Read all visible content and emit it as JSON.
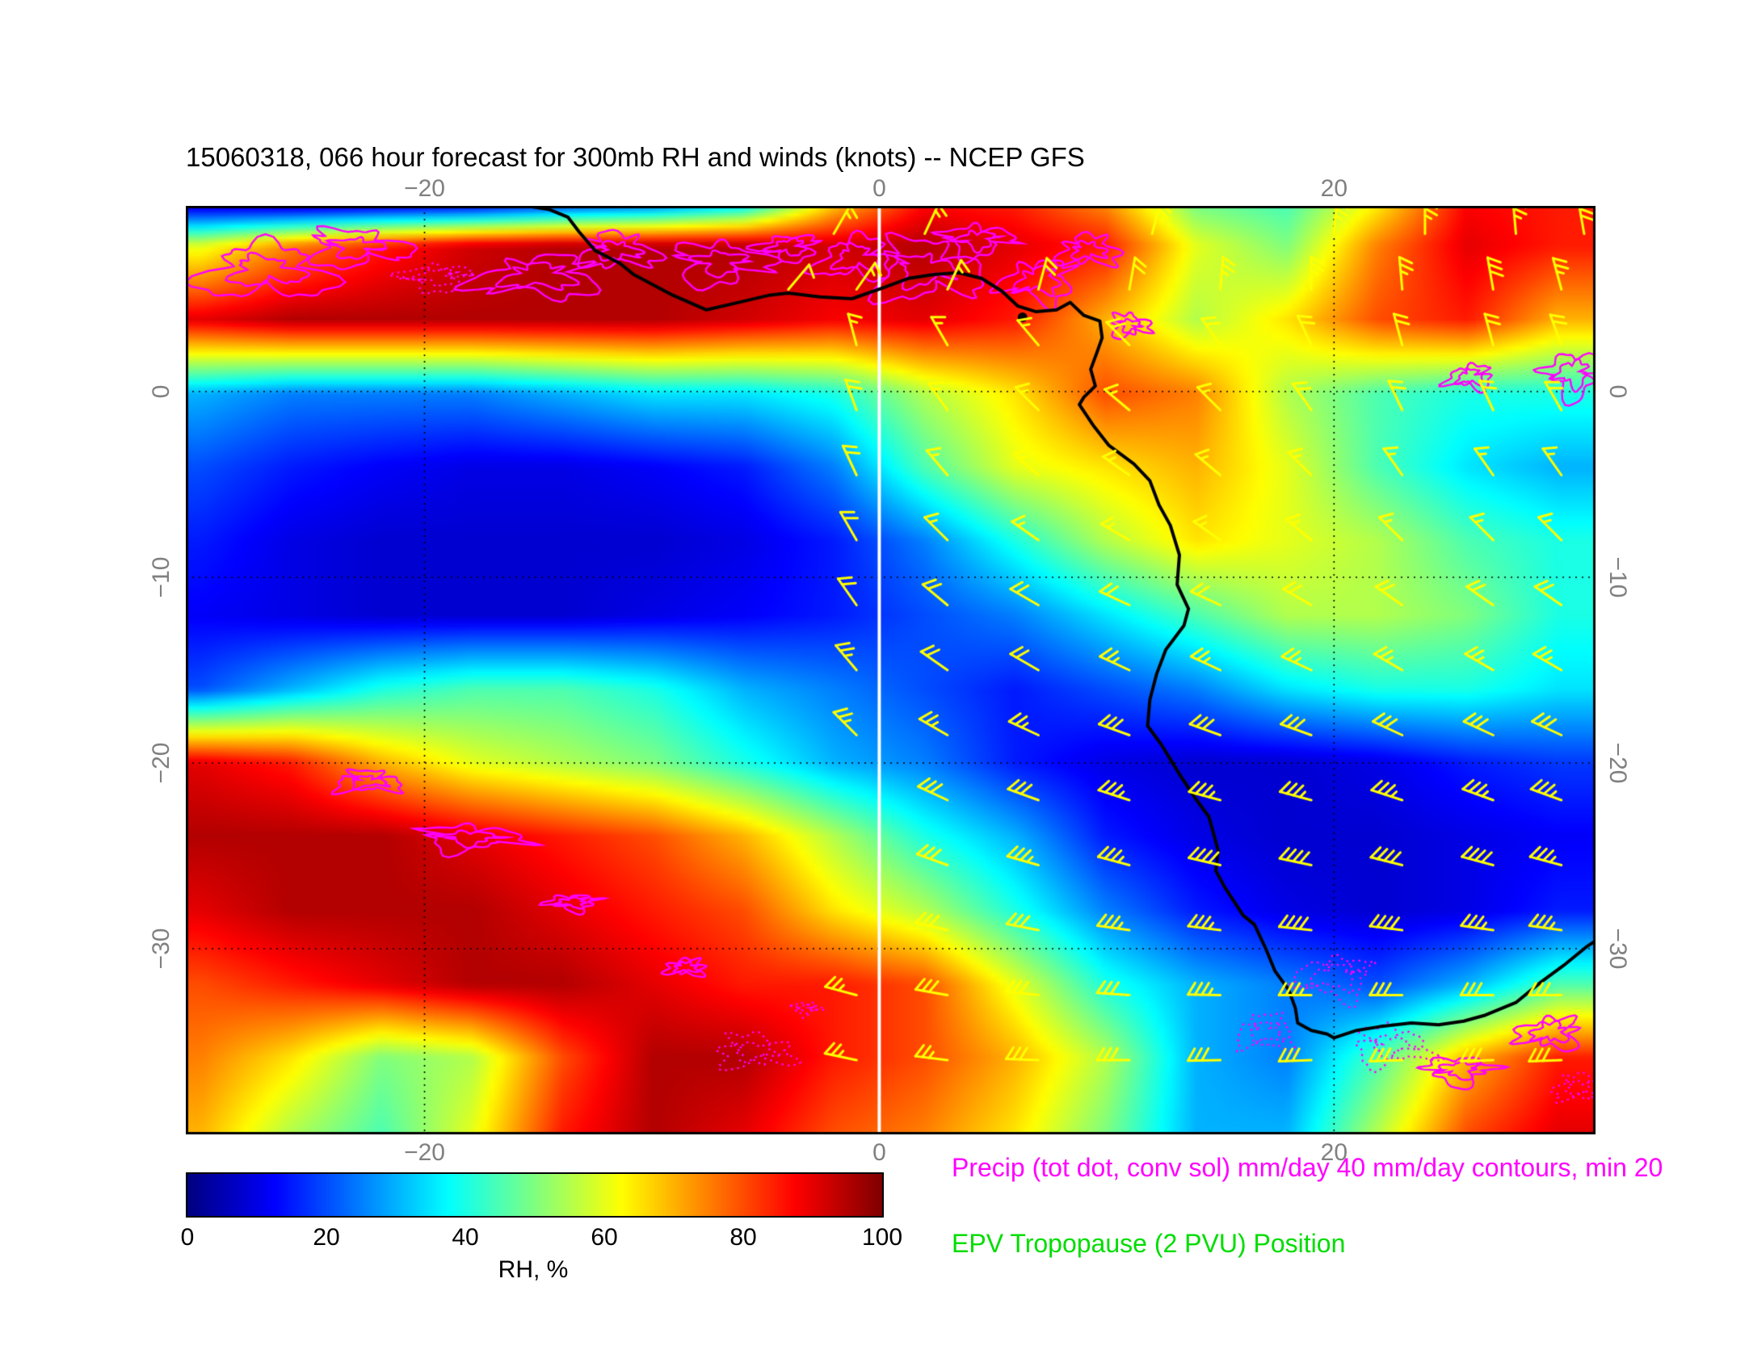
{
  "title": "15060318, 066 hour forecast for 300mb RH and winds (knots) -- NCEP GFS",
  "legend": {
    "precip": "Precip (tot dot, conv sol) mm/day 40 mm/day contours, min 20",
    "epv": "EPV Tropopause (2 PVU) Position"
  },
  "colorbar": {
    "label": "RH, %",
    "ticks": [
      0,
      20,
      40,
      60,
      80,
      100
    ],
    "min": 0,
    "max": 100,
    "colormap": "jet"
  },
  "colors": {
    "precip": "#ff00ff",
    "epv": "#00dd00",
    "barb": "#ffff00",
    "coast": "#000000",
    "grid": "#000000",
    "frame": "#000000",
    "tick_label": "#808080",
    "meridian_line": "#ffffff"
  },
  "axes": {
    "lon_range": [
      -30.5,
      31.5
    ],
    "lat_range": [
      10,
      -40
    ],
    "lon_ticks": [
      {
        "value": -20,
        "label": "−20"
      },
      {
        "value": 0,
        "label": "0"
      },
      {
        "value": 20,
        "label": "20"
      }
    ],
    "lat_ticks": [
      {
        "value": 0,
        "label": "0"
      },
      {
        "value": -10,
        "label": "−10"
      },
      {
        "value": -20,
        "label": "−20"
      },
      {
        "value": -30,
        "label": "−30"
      }
    ]
  },
  "chart_data": {
    "type": "heatmap",
    "field": "300mb relative humidity (%), NCEP GFS 066 hour forecast, init 15060318",
    "lon": [
      -30,
      -26,
      -22,
      -18,
      -14,
      -10,
      -6,
      -2,
      2,
      6,
      10,
      14,
      18,
      22,
      26,
      30
    ],
    "lat": [
      10,
      8,
      4,
      0,
      -4,
      -8,
      -12,
      -16,
      -20,
      -24,
      -28,
      -32,
      -36,
      -40
    ],
    "rh": [
      [
        12,
        12,
        15,
        18,
        25,
        30,
        40,
        70,
        88,
        85,
        75,
        50,
        45,
        65,
        88,
        85
      ],
      [
        60,
        75,
        85,
        92,
        95,
        95,
        95,
        92,
        95,
        90,
        85,
        60,
        50,
        75,
        90,
        85
      ],
      [
        90,
        95,
        95,
        95,
        95,
        95,
        92,
        88,
        90,
        85,
        70,
        55,
        65,
        80,
        85,
        70
      ],
      [
        30,
        25,
        25,
        25,
        30,
        35,
        35,
        40,
        55,
        65,
        80,
        75,
        55,
        45,
        40,
        40
      ],
      [
        20,
        15,
        12,
        10,
        10,
        12,
        15,
        25,
        45,
        60,
        65,
        70,
        60,
        45,
        35,
        30
      ],
      [
        15,
        10,
        8,
        8,
        8,
        8,
        10,
        15,
        25,
        40,
        55,
        65,
        60,
        55,
        45,
        40
      ],
      [
        12,
        10,
        8,
        8,
        8,
        10,
        12,
        15,
        20,
        25,
        35,
        45,
        55,
        55,
        50,
        40
      ],
      [
        20,
        30,
        40,
        45,
        45,
        40,
        30,
        25,
        20,
        15,
        20,
        25,
        35,
        40,
        40,
        35
      ],
      [
        90,
        85,
        70,
        60,
        55,
        50,
        40,
        30,
        25,
        15,
        10,
        8,
        8,
        10,
        15,
        18
      ],
      [
        95,
        95,
        95,
        90,
        85,
        80,
        70,
        55,
        40,
        30,
        15,
        10,
        8,
        8,
        10,
        12
      ],
      [
        90,
        95,
        95,
        95,
        90,
        85,
        80,
        65,
        55,
        40,
        25,
        15,
        10,
        8,
        10,
        15
      ],
      [
        80,
        85,
        90,
        95,
        95,
        90,
        85,
        85,
        80,
        60,
        40,
        30,
        25,
        20,
        30,
        45
      ],
      [
        75,
        65,
        50,
        55,
        80,
        95,
        95,
        85,
        80,
        70,
        55,
        30,
        25,
        45,
        70,
        85
      ],
      [
        70,
        55,
        45,
        60,
        85,
        95,
        90,
        80,
        75,
        65,
        50,
        30,
        30,
        55,
        80,
        90
      ]
    ],
    "gridline_lons": [
      -20,
      0,
      20
    ],
    "gridline_lats": [
      0,
      -10,
      -20,
      -30
    ],
    "meridian_line_lon": 0,
    "wind_barbs_knots_format": [
      "lon",
      "lat",
      "dir_from_deg",
      "speed_kt"
    ],
    "wind_barbs_knots": [
      [
        -2,
        8.5,
        30,
        15
      ],
      [
        2,
        8.5,
        25,
        15
      ],
      [
        12,
        8.5,
        15,
        20
      ],
      [
        20,
        8.5,
        5,
        25
      ],
      [
        24,
        8.5,
        0,
        25
      ],
      [
        28,
        8.5,
        355,
        25
      ],
      [
        31,
        8.5,
        350,
        30
      ],
      [
        -4,
        5.5,
        40,
        10
      ],
      [
        -1,
        5.5,
        35,
        15
      ],
      [
        3,
        5.5,
        25,
        15
      ],
      [
        7,
        5.5,
        15,
        20
      ],
      [
        11,
        5.5,
        10,
        20
      ],
      [
        15,
        5.5,
        5,
        25
      ],
      [
        19,
        5.5,
        0,
        25
      ],
      [
        23,
        5.5,
        355,
        25
      ],
      [
        27,
        5.5,
        350,
        30
      ],
      [
        30,
        5.5,
        345,
        25
      ],
      [
        -1,
        2.5,
        345,
        15
      ],
      [
        3,
        2.5,
        330,
        15
      ],
      [
        7,
        2.5,
        320,
        15
      ],
      [
        11,
        2.5,
        315,
        20
      ],
      [
        15,
        2.5,
        325,
        20
      ],
      [
        19,
        2.5,
        335,
        20
      ],
      [
        23,
        2.5,
        345,
        20
      ],
      [
        27,
        2.5,
        345,
        20
      ],
      [
        30,
        2.5,
        340,
        20
      ],
      [
        -1,
        -1,
        340,
        20
      ],
      [
        3,
        -1,
        325,
        15
      ],
      [
        7,
        -1,
        315,
        15
      ],
      [
        11,
        -1,
        310,
        15
      ],
      [
        15,
        -1,
        315,
        15
      ],
      [
        19,
        -1,
        325,
        20
      ],
      [
        23,
        -1,
        335,
        20
      ],
      [
        27,
        -1,
        335,
        20
      ],
      [
        30,
        -1,
        330,
        20
      ],
      [
        -1,
        -4.5,
        335,
        20
      ],
      [
        3,
        -4.5,
        320,
        15
      ],
      [
        7,
        -4.5,
        310,
        15
      ],
      [
        11,
        -4.5,
        305,
        15
      ],
      [
        15,
        -4.5,
        310,
        15
      ],
      [
        19,
        -4.5,
        315,
        15
      ],
      [
        23,
        -4.5,
        325,
        15
      ],
      [
        27,
        -4.5,
        325,
        15
      ],
      [
        30,
        -4.5,
        325,
        15
      ],
      [
        -1,
        -8,
        330,
        20
      ],
      [
        3,
        -8,
        315,
        15
      ],
      [
        7,
        -8,
        305,
        15
      ],
      [
        11,
        -8,
        300,
        15
      ],
      [
        15,
        -8,
        305,
        15
      ],
      [
        19,
        -8,
        310,
        15
      ],
      [
        23,
        -8,
        315,
        15
      ],
      [
        27,
        -8,
        315,
        15
      ],
      [
        30,
        -8,
        315,
        15
      ],
      [
        -1,
        -11.5,
        325,
        20
      ],
      [
        3,
        -11.5,
        310,
        20
      ],
      [
        7,
        -11.5,
        300,
        20
      ],
      [
        11,
        -11.5,
        295,
        20
      ],
      [
        15,
        -11.5,
        295,
        20
      ],
      [
        19,
        -11.5,
        300,
        20
      ],
      [
        23,
        -11.5,
        305,
        20
      ],
      [
        27,
        -11.5,
        305,
        20
      ],
      [
        30,
        -11.5,
        305,
        20
      ],
      [
        -1,
        -15,
        320,
        25
      ],
      [
        3,
        -15,
        305,
        20
      ],
      [
        7,
        -15,
        300,
        20
      ],
      [
        11,
        -15,
        295,
        25
      ],
      [
        15,
        -15,
        295,
        25
      ],
      [
        19,
        -15,
        295,
        25
      ],
      [
        23,
        -15,
        300,
        25
      ],
      [
        27,
        -15,
        300,
        25
      ],
      [
        30,
        -15,
        300,
        25
      ],
      [
        -1,
        -18.5,
        315,
        25
      ],
      [
        3,
        -18.5,
        300,
        25
      ],
      [
        7,
        -18.5,
        295,
        25
      ],
      [
        11,
        -18.5,
        290,
        30
      ],
      [
        15,
        -18.5,
        290,
        30
      ],
      [
        19,
        -18.5,
        290,
        30
      ],
      [
        23,
        -18.5,
        295,
        30
      ],
      [
        27,
        -18.5,
        295,
        30
      ],
      [
        30,
        -18.5,
        295,
        30
      ],
      [
        3,
        -22,
        295,
        30
      ],
      [
        7,
        -22,
        290,
        30
      ],
      [
        11,
        -22,
        288,
        35
      ],
      [
        15,
        -22,
        285,
        35
      ],
      [
        19,
        -22,
        285,
        35
      ],
      [
        23,
        -22,
        288,
        35
      ],
      [
        27,
        -22,
        290,
        35
      ],
      [
        30,
        -22,
        290,
        35
      ],
      [
        3,
        -25.5,
        290,
        30
      ],
      [
        7,
        -25.5,
        286,
        35
      ],
      [
        11,
        -25.5,
        285,
        35
      ],
      [
        15,
        -25.5,
        283,
        40
      ],
      [
        19,
        -25.5,
        282,
        40
      ],
      [
        23,
        -25.5,
        284,
        40
      ],
      [
        27,
        -25.5,
        285,
        40
      ],
      [
        30,
        -25.5,
        285,
        35
      ],
      [
        3,
        -29,
        283,
        30
      ],
      [
        7,
        -29,
        281,
        32
      ],
      [
        11,
        -29,
        278,
        35
      ],
      [
        15,
        -29,
        277,
        35
      ],
      [
        19,
        -29,
        276,
        38
      ],
      [
        23,
        -29,
        277,
        38
      ],
      [
        27,
        -29,
        278,
        35
      ],
      [
        30,
        -29,
        278,
        35
      ],
      [
        -1,
        -32.5,
        285,
        25
      ],
      [
        3,
        -32.5,
        280,
        30
      ],
      [
        7,
        -32.5,
        276,
        30
      ],
      [
        11,
        -32.5,
        274,
        32
      ],
      [
        15,
        -32.5,
        271,
        35
      ],
      [
        19,
        -32.5,
        270,
        35
      ],
      [
        23,
        -32.5,
        270,
        32
      ],
      [
        27,
        -32.5,
        270,
        30
      ],
      [
        30,
        -32.5,
        270,
        30
      ],
      [
        -1,
        -36,
        282,
        25
      ],
      [
        3,
        -36,
        277,
        27
      ],
      [
        7,
        -36,
        272,
        30
      ],
      [
        11,
        -36,
        270,
        30
      ],
      [
        15,
        -36,
        269,
        30
      ],
      [
        19,
        -36,
        268,
        30
      ],
      [
        23,
        -36,
        268,
        30
      ],
      [
        27,
        -36,
        268,
        30
      ],
      [
        30,
        -36,
        268,
        30
      ]
    ],
    "precip_contours_format": [
      "lon",
      "lat",
      "width_deg",
      "height_deg",
      "style"
    ],
    "precip_contours": [
      [
        -27,
        6.5,
        5,
        2.5,
        "solid"
      ],
      [
        -23,
        7.8,
        4,
        2,
        "solid"
      ],
      [
        -19.5,
        6.2,
        3,
        1.5,
        "dotted"
      ],
      [
        -15,
        6.2,
        5,
        2,
        "solid"
      ],
      [
        -11.5,
        7.6,
        3,
        1.6,
        "solid"
      ],
      [
        -7,
        7,
        4,
        2.4,
        "solid"
      ],
      [
        -4,
        7.8,
        2.6,
        1.4,
        "solid"
      ],
      [
        -1,
        7.2,
        3,
        2,
        "solid"
      ],
      [
        2,
        6.6,
        4.2,
        3,
        "solid"
      ],
      [
        4.3,
        8.2,
        3,
        1.8,
        "solid"
      ],
      [
        7,
        6,
        3,
        2.2,
        "solid"
      ],
      [
        9.2,
        7.6,
        2.4,
        1.4,
        "solid"
      ],
      [
        11,
        3.6,
        1.6,
        1.2,
        "solid"
      ],
      [
        30.5,
        1,
        2.4,
        2.6,
        "solid"
      ],
      [
        26,
        0.8,
        1.8,
        1.2,
        "solid"
      ],
      [
        -22.5,
        -21,
        2.6,
        1,
        "solid"
      ],
      [
        -18,
        -24,
        4.2,
        1.4,
        "solid"
      ],
      [
        -13.5,
        -27.5,
        2.2,
        0.9,
        "solid"
      ],
      [
        -8.5,
        -31,
        1.6,
        0.8,
        "solid"
      ],
      [
        -5.5,
        -35.5,
        3,
        1.6,
        "dotted"
      ],
      [
        -3.2,
        -33.2,
        1.2,
        0.7,
        "dotted"
      ],
      [
        20,
        -31.5,
        3.2,
        2.2,
        "dotted"
      ],
      [
        17,
        -34.5,
        2.2,
        1.6,
        "dotted"
      ],
      [
        22.5,
        -35.2,
        3,
        2,
        "dotted"
      ],
      [
        25.5,
        -36.5,
        3,
        1.6,
        "solid"
      ],
      [
        29.5,
        -34.5,
        2.6,
        1.6,
        "solid"
      ],
      [
        30.8,
        -37.5,
        2,
        1.2,
        "dotted"
      ]
    ],
    "coastline": [
      [
        -15.5,
        10
      ],
      [
        -14.5,
        9.8
      ],
      [
        -13.7,
        9.4
      ],
      [
        -13.2,
        8.6
      ],
      [
        -12.5,
        7.6
      ],
      [
        -11.4,
        6.9
      ],
      [
        -10.8,
        6.3
      ],
      [
        -9.1,
        5.2
      ],
      [
        -7.6,
        4.4
      ],
      [
        -6.2,
        4.8
      ],
      [
        -4.8,
        5.2
      ],
      [
        -4,
        5.3
      ],
      [
        -2.6,
        5.1
      ],
      [
        -1.2,
        5.0
      ],
      [
        0.2,
        5.6
      ],
      [
        1.3,
        6.1
      ],
      [
        2.4,
        6.3
      ],
      [
        3.5,
        6.4
      ],
      [
        4.5,
        6.1
      ],
      [
        5.4,
        5.4
      ],
      [
        6.1,
        4.6
      ],
      [
        6.9,
        4.3
      ],
      [
        7.8,
        4.4
      ],
      [
        8.4,
        4.8
      ],
      [
        9.0,
        4.1
      ],
      [
        9.7,
        3.8
      ],
      [
        9.8,
        2.9
      ],
      [
        9.6,
        2.2
      ],
      [
        9.3,
        1.2
      ],
      [
        9.5,
        0.3
      ],
      [
        9.0,
        -0.3
      ],
      [
        8.8,
        -0.7
      ],
      [
        9.4,
        -1.8
      ],
      [
        10.1,
        -2.9
      ],
      [
        11.2,
        -3.9
      ],
      [
        11.9,
        -4.8
      ],
      [
        12.3,
        -6.1
      ],
      [
        12.8,
        -7.2
      ],
      [
        13.2,
        -8.8
      ],
      [
        13.1,
        -10.4
      ],
      [
        13.6,
        -11.7
      ],
      [
        13.4,
        -12.6
      ],
      [
        12.6,
        -13.9
      ],
      [
        12.2,
        -15.2
      ],
      [
        11.9,
        -16.6
      ],
      [
        11.8,
        -18
      ],
      [
        12.4,
        -19
      ],
      [
        13.2,
        -20.6
      ],
      [
        13.9,
        -21.9
      ],
      [
        14.5,
        -22.9
      ],
      [
        14.9,
        -24.7
      ],
      [
        14.8,
        -25.8
      ],
      [
        15.2,
        -26.7
      ],
      [
        16,
        -28.2
      ],
      [
        16.5,
        -28.7
      ],
      [
        17,
        -30
      ],
      [
        17.4,
        -31.2
      ],
      [
        18,
        -32.2
      ],
      [
        18.3,
        -33.2
      ],
      [
        18.4,
        -34
      ],
      [
        19,
        -34.4
      ],
      [
        19.7,
        -34.6
      ],
      [
        20,
        -34.8
      ],
      [
        21,
        -34.4
      ],
      [
        22,
        -34.2
      ],
      [
        23.4,
        -34
      ],
      [
        24.6,
        -34.1
      ],
      [
        25.7,
        -33.9
      ],
      [
        26.6,
        -33.6
      ],
      [
        28,
        -32.9
      ],
      [
        29.1,
        -31.8
      ],
      [
        30.1,
        -30.9
      ],
      [
        31.1,
        -29.9
      ],
      [
        31.6,
        -29.5
      ]
    ],
    "coastal_dot": [
      6.3,
      4.0
    ]
  }
}
